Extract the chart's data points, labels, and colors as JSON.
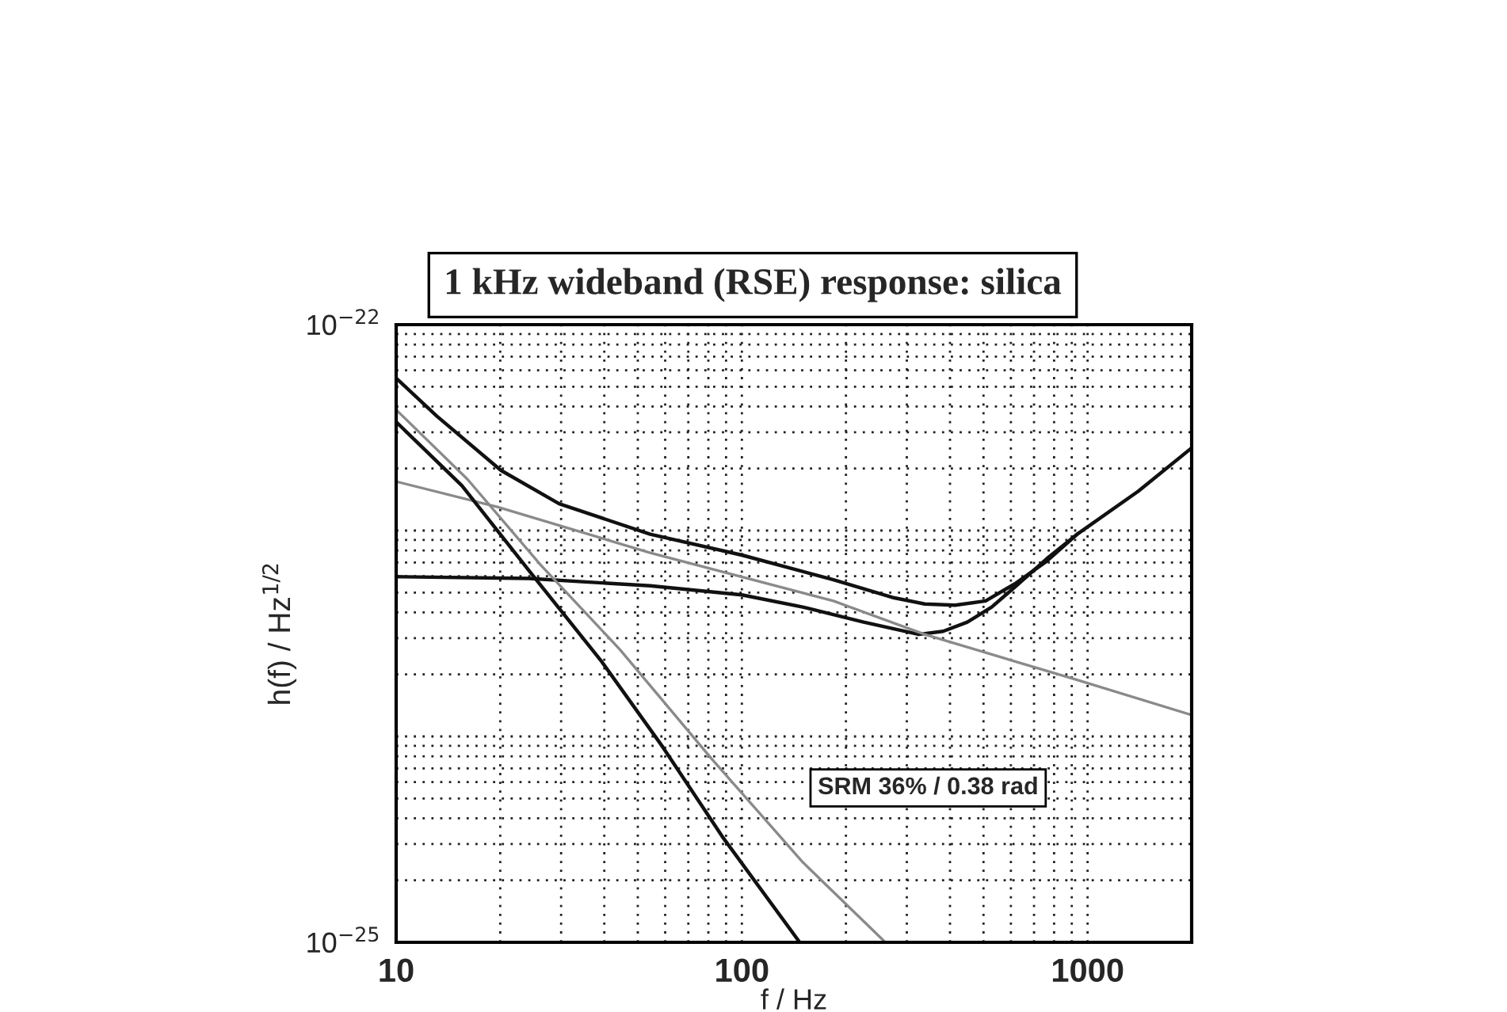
{
  "chart_data": {
    "type": "line",
    "title": "1 kHz wideband (RSE) response: silica",
    "xlabel": "f / Hz",
    "ylabel": "h(f) / Hz$^{1/2}$",
    "log": "xy",
    "grid": true,
    "line_style": "solid",
    "xlim": [
      10,
      2000
    ],
    "xticks": [
      10,
      100,
      1000
    ],
    "ylim": [
      1e-25,
      1e-22
    ],
    "yticks": [
      {
        "value": 1e-25,
        "label": "10$^{−25}$"
      },
      {
        "value": 1e-24,
        "label": null
      },
      {
        "value": 1e-23,
        "label": null
      },
      {
        "value": 1e-22,
        "label": "10$^{−22}$"
      }
    ],
    "annotations": [
      "SRM 36% / 0.38 rad"
    ],
    "series": [
      {
        "color": "#111111",
        "x": [
          10,
          13.1,
          20.1,
          29.6,
          54.3,
          100,
          184,
          276,
          338,
          414,
          507,
          622,
          762,
          933,
          1400,
          2000
        ],
        "values": [
          5.5e-23,
          3.6e-23,
          1.96e-23,
          1.35e-23,
          9.6e-24,
          7.6e-24,
          5.77e-24,
          4.71e-24,
          4.4e-24,
          4.34e-24,
          4.55e-24,
          5.57e-24,
          7.1e-24,
          9.6e-24,
          1.55e-23,
          2.52e-23
        ]
      },
      {
        "color": "#111111",
        "x": [
          10,
          24.2,
          54.3,
          100,
          150,
          225,
          325,
          382,
          449,
          528,
          622,
          762,
          933
        ],
        "values": [
          5.97e-24,
          5.85e-24,
          5.39e-24,
          4.87e-24,
          4.25e-24,
          3.59e-24,
          3.13e-24,
          3.24e-24,
          3.59e-24,
          4.25e-24,
          5.39e-24,
          7.3e-24,
          9.6e-24
        ]
      },
      {
        "color": "#8a8a8a",
        "x": [
          10,
          19.7,
          54.3,
          184,
          338,
          933,
          2000
        ],
        "values": [
          1.73e-23,
          1.3e-23,
          7.8e-24,
          4.55e-24,
          3.13e-24,
          1.88e-24,
          1.27e-24
        ]
      },
      {
        "color": "#111111",
        "x": [
          10,
          15.5,
          24.2,
          39.3,
          59.0,
          88.5,
          147
        ],
        "values": [
          3.37e-23,
          1.65e-23,
          6.4e-24,
          2.31e-24,
          8.9e-25,
          3.2e-25,
          1e-25
        ]
      },
      {
        "color": "#8a8a8a",
        "x": [
          10,
          16.1,
          26.2,
          44.4,
          81.7,
          150,
          260
        ],
        "values": [
          3.86e-23,
          1.77e-23,
          6.8e-24,
          2.64e-24,
          7.8e-25,
          2.45e-25,
          1e-25
        ]
      }
    ]
  }
}
